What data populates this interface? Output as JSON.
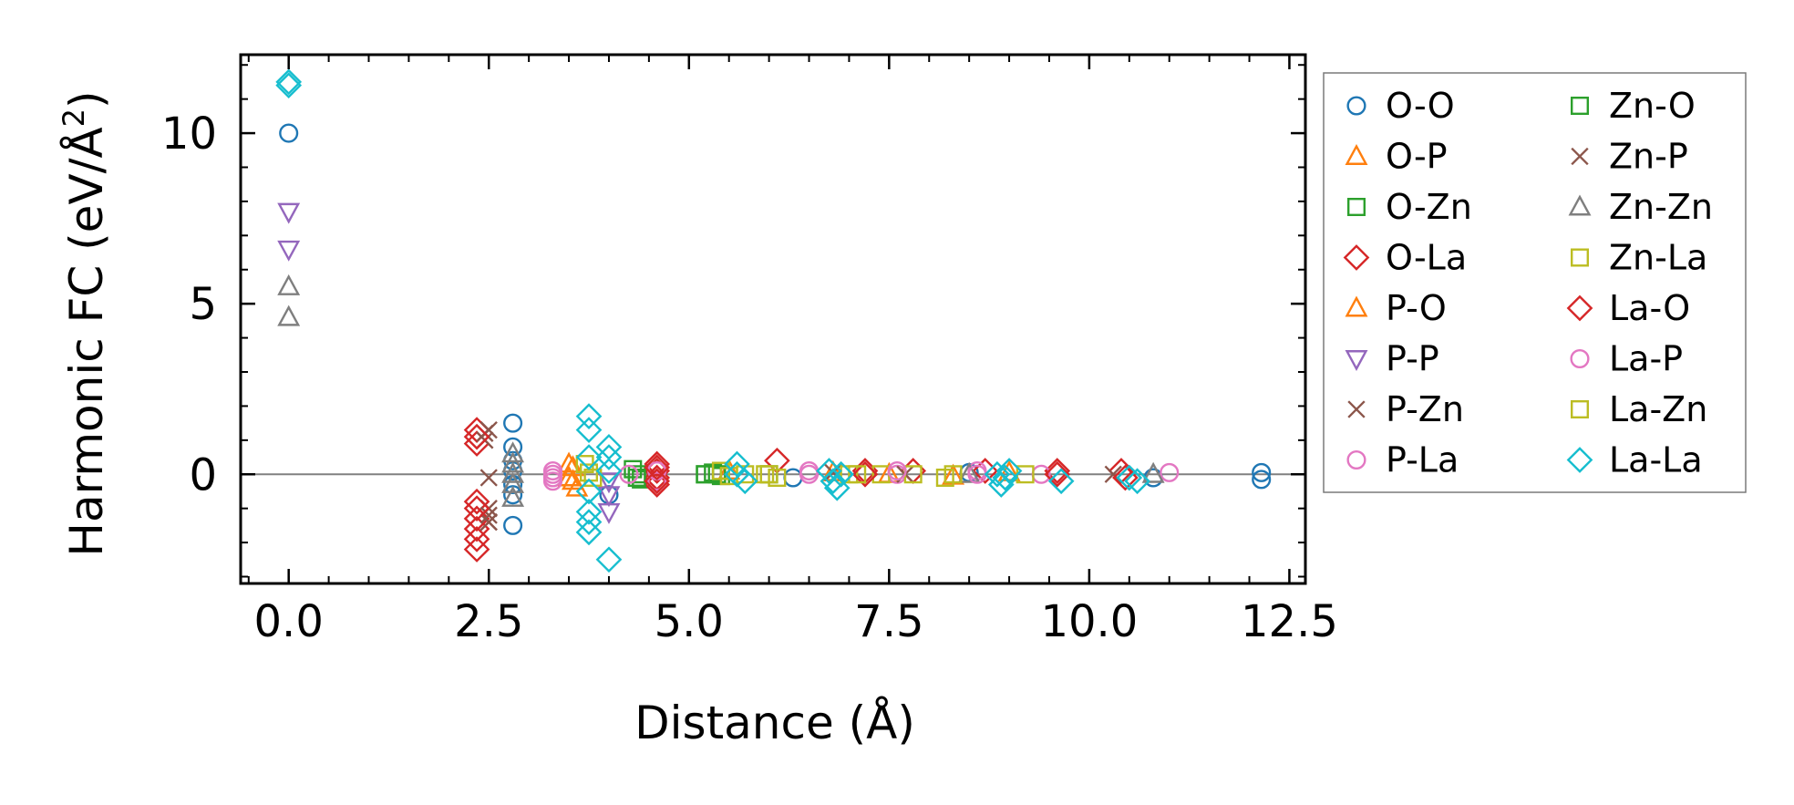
{
  "chart_data": {
    "type": "scatter",
    "title": "",
    "xlabel": "Distance (Å)",
    "ylabel": "Harmonic FC (eV/Å",
    "ylabel_superscript": "2",
    "ylabel_suffix": ")",
    "xlim": [
      -0.6,
      12.7
    ],
    "ylim": [
      -3.2,
      12.3
    ],
    "xticks": [
      0.0,
      2.5,
      5.0,
      7.5,
      10.0,
      12.5
    ],
    "xtick_labels": [
      "0.0",
      "2.5",
      "5.0",
      "7.5",
      "10.0",
      "12.5"
    ],
    "yticks": [
      0,
      5,
      10
    ],
    "ytick_labels": [
      "0",
      "5",
      "10"
    ],
    "xminor": 0.5,
    "yminor": 1,
    "hline": 0,
    "legend_position": "outside-right",
    "series": [
      {
        "name": "O-O",
        "color": "#1f77b4",
        "marker": "circle",
        "x": [
          0,
          2.8,
          2.8,
          2.8,
          2.8,
          2.8,
          2.8,
          2.8,
          4.0,
          6.3,
          8.5,
          10.8,
          12.15,
          12.15
        ],
        "y": [
          10.0,
          1.5,
          0.8,
          0.4,
          0.1,
          -0.3,
          -0.6,
          -1.5,
          -0.6,
          -0.1,
          0.05,
          -0.1,
          0.05,
          -0.15
        ]
      },
      {
        "name": "O-P",
        "color": "#ff7f0e",
        "marker": "triangle-up",
        "x": [
          3.5,
          3.5,
          3.6,
          5.5,
          6.8,
          8.3
        ],
        "y": [
          0.3,
          -0.1,
          -0.4,
          0.1,
          0.05,
          -0.05
        ]
      },
      {
        "name": "O-Zn",
        "color": "#2ca02c",
        "marker": "square",
        "x": [
          4.3,
          4.35,
          4.4,
          5.2,
          5.3,
          5.4,
          6.0
        ],
        "y": [
          0.15,
          0.0,
          -0.15,
          0.0,
          0.05,
          -0.05,
          0.0
        ]
      },
      {
        "name": "O-La",
        "color": "#d62728",
        "marker": "diamond",
        "x": [
          2.35,
          2.35,
          2.35,
          2.35,
          2.35,
          2.35,
          2.35,
          4.6,
          4.6,
          4.6,
          4.6,
          6.1,
          7.2,
          7.8,
          8.7,
          9.6,
          10.4
        ],
        "y": [
          1.3,
          0.9,
          -0.8,
          -1.3,
          -1.6,
          -1.9,
          -2.2,
          0.3,
          0.1,
          -0.1,
          -0.3,
          0.4,
          0.1,
          0.1,
          0.1,
          0.1,
          0.1
        ]
      },
      {
        "name": "P-O",
        "color": "#ff7f0e",
        "marker": "triangle-up",
        "x": [
          3.55,
          3.55,
          7.5,
          9.0
        ],
        "y": [
          0.2,
          -0.2,
          0.0,
          0.05
        ]
      },
      {
        "name": "P-P",
        "color": "#9467bd",
        "marker": "triangle-down",
        "x": [
          0,
          0,
          4.0,
          4.0,
          4.0
        ],
        "y": [
          7.7,
          6.6,
          -0.2,
          -0.6,
          -1.1
        ]
      },
      {
        "name": "P-Zn",
        "color": "#8c564b",
        "marker": "x",
        "x": [
          2.45,
          2.45,
          2.5,
          2.5,
          2.5,
          2.5,
          6.8,
          10.3
        ],
        "y": [
          1.2,
          1.0,
          -0.1,
          -1.0,
          -1.2,
          -1.4,
          0.05,
          0.0
        ]
      },
      {
        "name": "P-La",
        "color": "#e377c2",
        "marker": "circle",
        "x": [
          3.3,
          3.3,
          3.3,
          4.6,
          4.6,
          6.5,
          7.6,
          8.6,
          9.4,
          11.0
        ],
        "y": [
          0.1,
          -0.1,
          -0.2,
          0.1,
          -0.2,
          0.1,
          0.0,
          0.1,
          0.0,
          0.05
        ]
      },
      {
        "name": "Zn-O",
        "color": "#2ca02c",
        "marker": "square",
        "x": [
          4.35,
          5.2,
          5.35
        ],
        "y": [
          -0.1,
          0.0,
          0.0
        ]
      },
      {
        "name": "Zn-P",
        "color": "#8c564b",
        "marker": "x",
        "x": [
          2.5,
          2.5,
          7.7
        ],
        "y": [
          1.3,
          -1.4,
          0.0
        ]
      },
      {
        "name": "Zn-Zn",
        "color": "#7f7f7f",
        "marker": "triangle-up",
        "x": [
          0,
          0,
          2.8,
          2.8,
          2.8,
          2.8,
          2.8,
          8.5,
          10.8
        ],
        "y": [
          5.5,
          4.6,
          0.6,
          0.3,
          0.0,
          -0.3,
          -0.7,
          0.0,
          0.0
        ]
      },
      {
        "name": "Zn-La",
        "color": "#bcbd22",
        "marker": "square",
        "x": [
          3.7,
          3.8,
          5.4,
          5.7,
          6.0,
          6.1,
          7.0,
          7.4,
          7.8,
          8.2,
          9.2
        ],
        "y": [
          0.3,
          -0.1,
          0.1,
          0.0,
          0.0,
          -0.1,
          0.0,
          0.0,
          0.0,
          -0.1,
          0.0
        ]
      },
      {
        "name": "La-O",
        "color": "#d62728",
        "marker": "diamond",
        "x": [
          2.35,
          2.35,
          4.6,
          4.6,
          7.2,
          9.6,
          10.45
        ],
        "y": [
          1.1,
          -1.0,
          0.2,
          -0.2,
          0.0,
          0.0,
          -0.1
        ]
      },
      {
        "name": "La-P",
        "color": "#e377c2",
        "marker": "circle",
        "x": [
          3.3,
          4.25,
          6.5,
          7.6,
          8.6
        ],
        "y": [
          0.0,
          0.0,
          0.0,
          0.1,
          0.0
        ]
      },
      {
        "name": "La-Zn",
        "color": "#bcbd22",
        "marker": "square",
        "x": [
          3.75,
          5.5,
          5.95,
          7.1,
          8.3
        ],
        "y": [
          0.05,
          -0.05,
          0.0,
          0.0,
          0.0
        ]
      },
      {
        "name": "La-La",
        "color": "#17becf",
        "marker": "diamond",
        "x": [
          0,
          0,
          3.75,
          3.75,
          3.75,
          3.75,
          3.75,
          3.75,
          3.75,
          4.0,
          4.0,
          4.0,
          4.0,
          5.6,
          5.6,
          5.7,
          6.75,
          6.8,
          6.85,
          6.9,
          8.85,
          8.9,
          8.95,
          9.0,
          9.65,
          10.5,
          10.6
        ],
        "y": [
          11.5,
          11.4,
          1.7,
          1.3,
          0.5,
          -0.5,
          -1.1,
          -1.4,
          -1.7,
          0.8,
          0.5,
          0.1,
          -2.5,
          0.3,
          0.0,
          -0.2,
          0.1,
          -0.2,
          -0.4,
          0.0,
          0.0,
          -0.3,
          -0.1,
          0.1,
          -0.2,
          -0.1,
          -0.2
        ]
      }
    ]
  }
}
